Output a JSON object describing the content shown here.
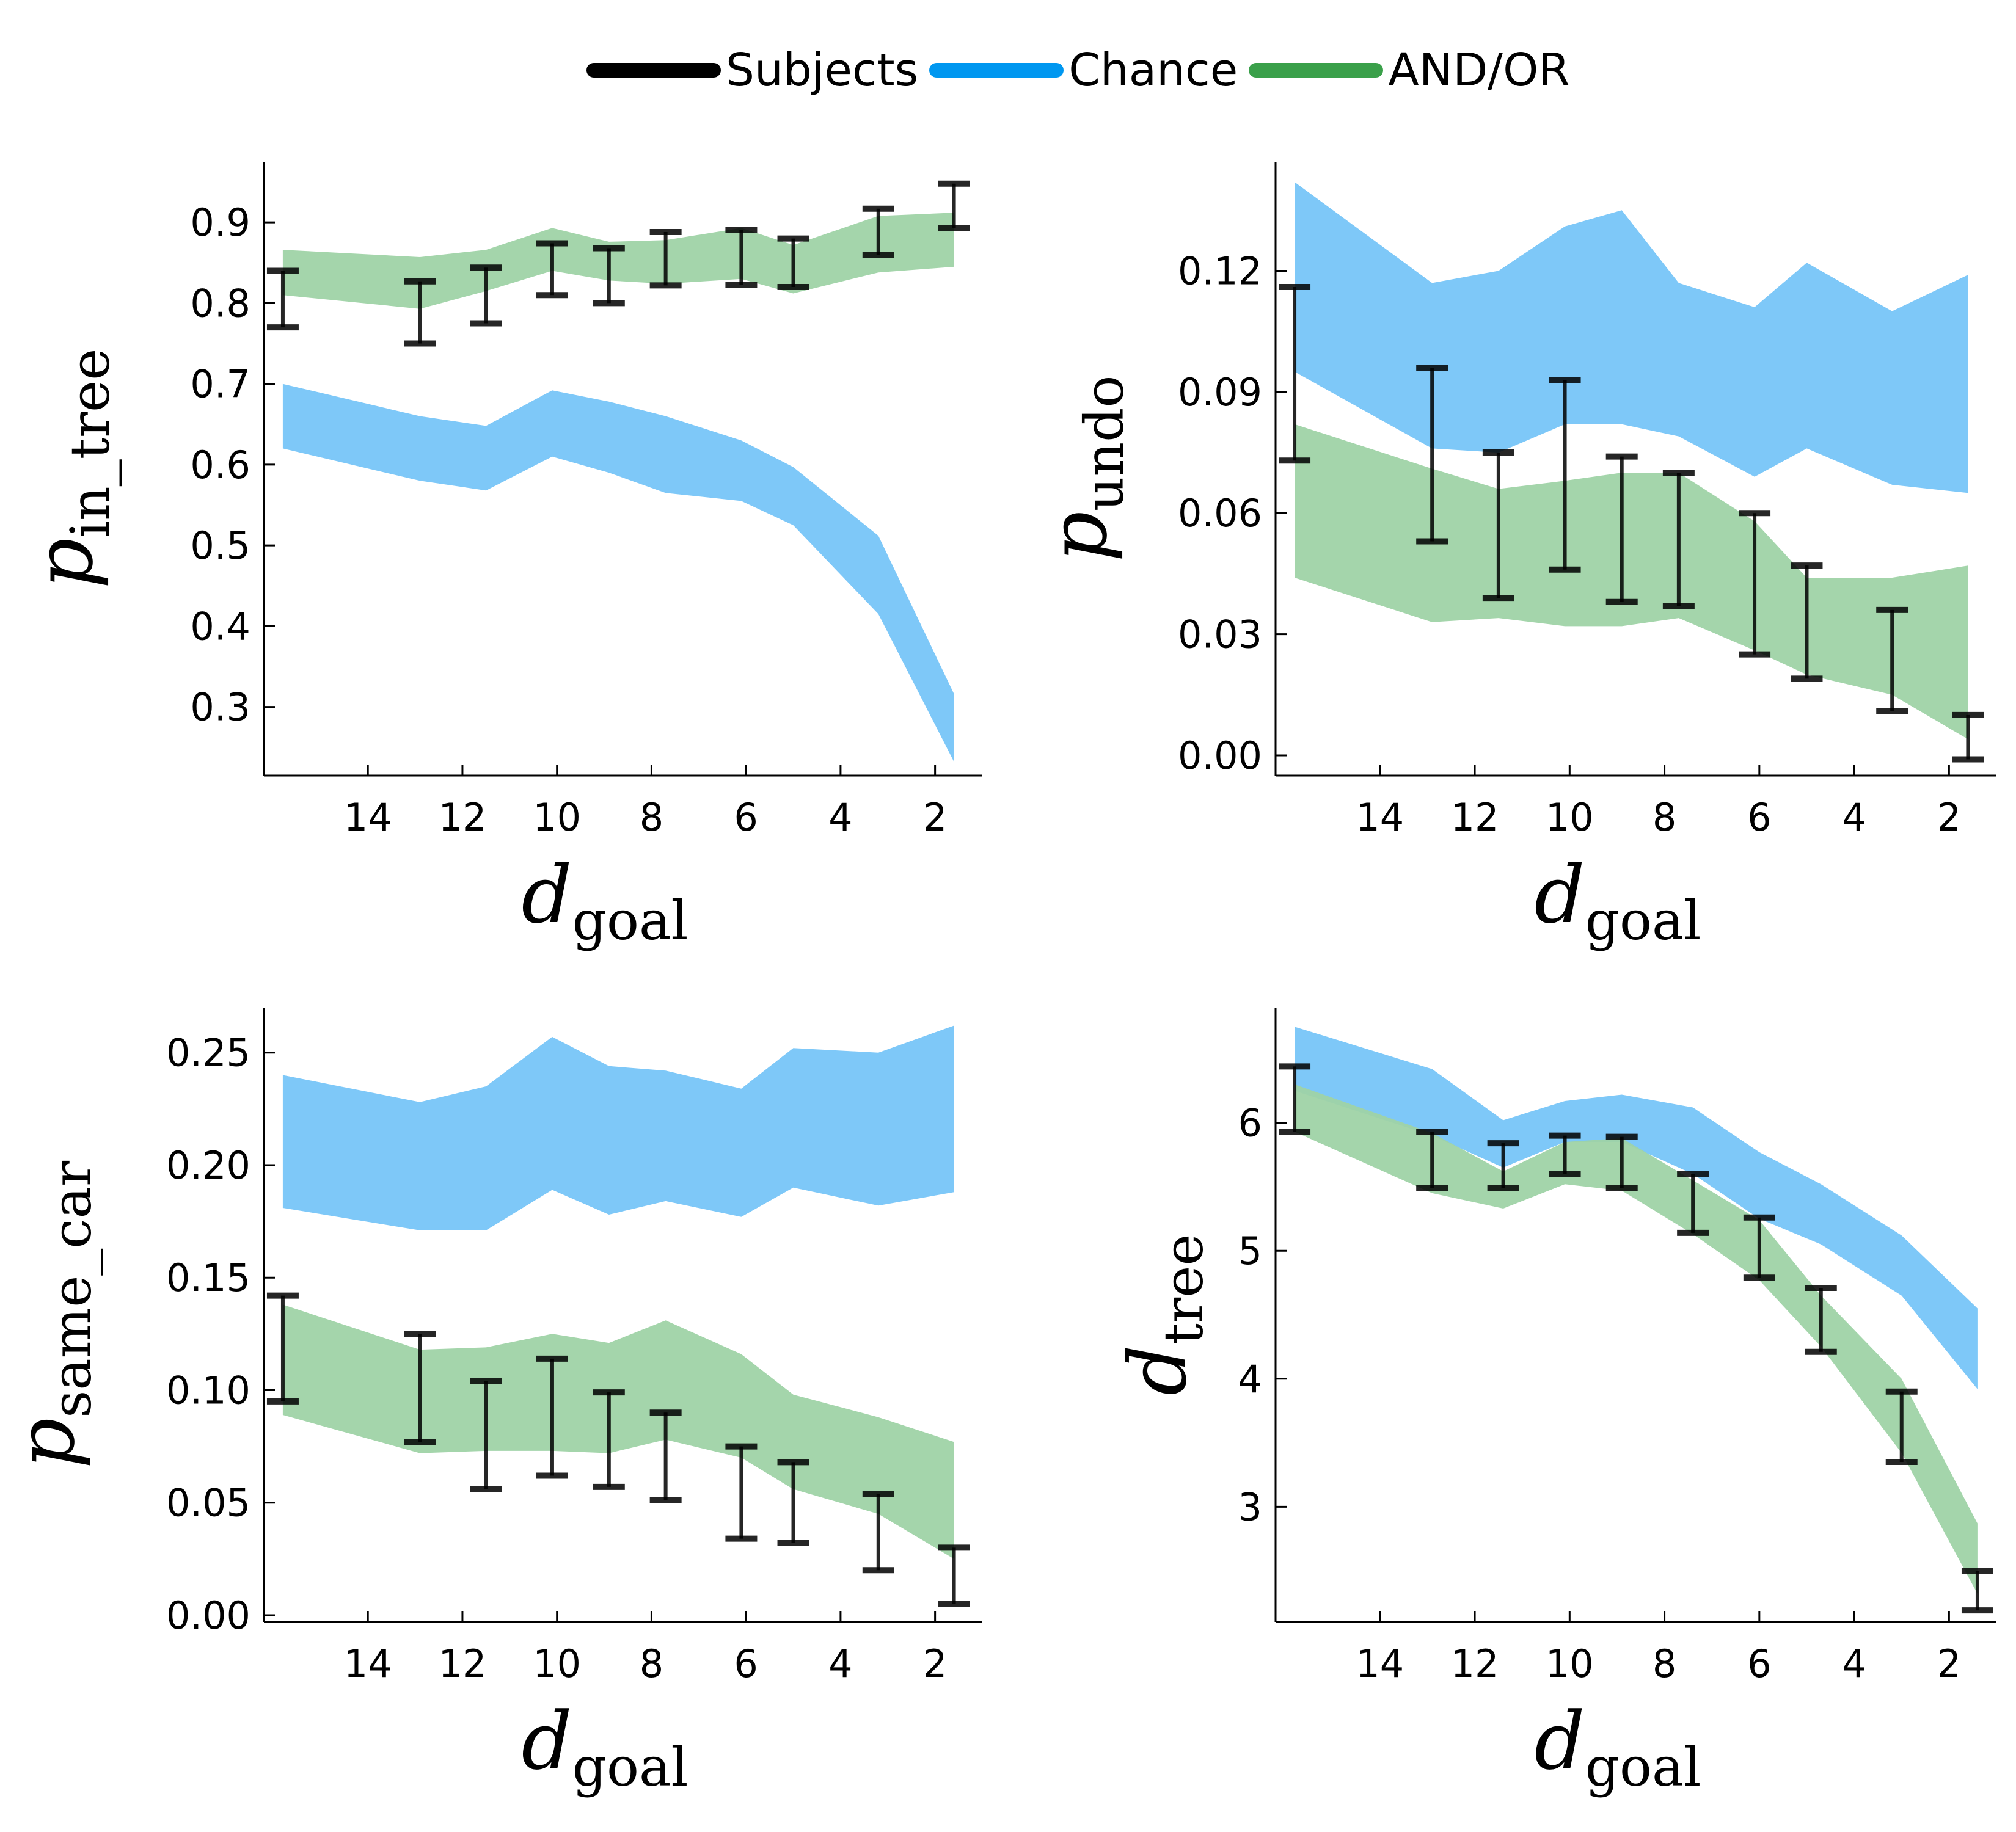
{
  "legend": [
    {
      "label": "Subjects",
      "color": "#000000"
    },
    {
      "label": "Chance",
      "color": "#0097f0"
    },
    {
      "label": "AND/OR",
      "color": "#3aa04a"
    }
  ],
  "colors": {
    "subjects": "#000000",
    "chance_band": "#7ec8f8",
    "andor_band": "#9fd3a6",
    "errorbar": "#000000"
  },
  "chart_data": [
    {
      "type": "line",
      "ylabel_main": "p",
      "ylabel_sub": "in_tree",
      "xlabel_main": "d",
      "xlabel_sub": "goal",
      "xlim": [
        16.2,
        1.0
      ],
      "ylim": [
        0.215,
        0.975
      ],
      "xticks": [
        14,
        12,
        10,
        8,
        6,
        4,
        2
      ],
      "yticks": [
        {
          "v": 0.3,
          "label": "0.3"
        },
        {
          "v": 0.4,
          "label": "0.4"
        },
        {
          "v": 0.5,
          "label": "0.5"
        },
        {
          "v": 0.6,
          "label": "0.6"
        },
        {
          "v": 0.7,
          "label": "0.7"
        },
        {
          "v": 0.8,
          "label": "0.8"
        },
        {
          "v": 0.9,
          "label": "0.9"
        }
      ],
      "series": [
        {
          "name": "Chance",
          "kind": "band",
          "x": [
            15.8,
            12.9,
            11.5,
            10.1,
            8.9,
            7.7,
            6.1,
            5.0,
            3.2,
            1.6
          ],
          "lower": [
            0.62,
            0.58,
            0.568,
            0.61,
            0.59,
            0.565,
            0.555,
            0.525,
            0.415,
            0.232
          ],
          "upper": [
            0.7,
            0.66,
            0.648,
            0.692,
            0.678,
            0.66,
            0.63,
            0.597,
            0.512,
            0.316
          ]
        },
        {
          "name": "AND/OR",
          "kind": "band",
          "x": [
            15.8,
            12.9,
            11.5,
            10.1,
            8.9,
            7.7,
            6.1,
            5.0,
            3.2,
            1.6
          ],
          "lower": [
            0.81,
            0.793,
            0.815,
            0.84,
            0.828,
            0.824,
            0.83,
            0.812,
            0.838,
            0.845
          ],
          "upper": [
            0.866,
            0.857,
            0.866,
            0.893,
            0.876,
            0.878,
            0.893,
            0.872,
            0.908,
            0.912
          ]
        },
        {
          "name": "Subjects",
          "kind": "errorbar",
          "x": [
            15.8,
            12.9,
            11.5,
            10.1,
            8.9,
            7.7,
            6.1,
            5.0,
            3.2,
            1.6
          ],
          "lower": [
            0.77,
            0.75,
            0.775,
            0.81,
            0.8,
            0.822,
            0.823,
            0.82,
            0.86,
            0.893
          ],
          "upper": [
            0.84,
            0.827,
            0.844,
            0.874,
            0.868,
            0.888,
            0.891,
            0.88,
            0.917,
            0.948
          ]
        }
      ]
    },
    {
      "type": "line",
      "ylabel_main": "p",
      "ylabel_sub": "undo",
      "xlabel_main": "d",
      "xlabel_sub": "goal",
      "xlim": [
        16.2,
        1.0
      ],
      "ylim": [
        -0.005,
        0.147
      ],
      "xticks": [
        14,
        12,
        10,
        8,
        6,
        4,
        2
      ],
      "yticks": [
        {
          "v": 0.0,
          "label": "0.00"
        },
        {
          "v": 0.03,
          "label": "0.03"
        },
        {
          "v": 0.06,
          "label": "0.06"
        },
        {
          "v": 0.09,
          "label": "0.09"
        },
        {
          "v": 0.12,
          "label": "0.12"
        }
      ],
      "series": [
        {
          "name": "Chance",
          "kind": "band",
          "x": [
            15.8,
            12.9,
            11.5,
            10.1,
            8.9,
            7.7,
            6.1,
            5.0,
            3.2,
            1.6
          ],
          "lower": [
            0.095,
            0.076,
            0.075,
            0.082,
            0.082,
            0.079,
            0.069,
            0.076,
            0.067,
            0.065
          ],
          "upper": [
            0.142,
            0.117,
            0.12,
            0.131,
            0.135,
            0.117,
            0.111,
            0.122,
            0.11,
            0.119
          ]
        },
        {
          "name": "AND/OR",
          "kind": "band",
          "x": [
            15.8,
            12.9,
            11.5,
            10.1,
            8.9,
            7.7,
            6.1,
            5.0,
            3.2,
            1.6
          ],
          "lower": [
            0.044,
            0.033,
            0.034,
            0.032,
            0.032,
            0.034,
            0.026,
            0.02,
            0.015,
            0.004
          ],
          "upper": [
            0.082,
            0.071,
            0.066,
            0.068,
            0.07,
            0.07,
            0.058,
            0.044,
            0.044,
            0.047
          ]
        },
        {
          "name": "Subjects",
          "kind": "errorbar",
          "x": [
            15.8,
            12.9,
            11.5,
            10.1,
            8.9,
            7.7,
            6.1,
            5.0,
            3.2,
            1.6
          ],
          "lower": [
            0.073,
            0.053,
            0.039,
            0.046,
            0.038,
            0.037,
            0.025,
            0.019,
            0.011,
            -0.001
          ],
          "upper": [
            0.116,
            0.096,
            0.075,
            0.093,
            0.074,
            0.07,
            0.06,
            0.047,
            0.036,
            0.01
          ]
        }
      ]
    },
    {
      "type": "line",
      "ylabel_main": "p",
      "ylabel_sub": "same_car",
      "xlabel_main": "d",
      "xlabel_sub": "goal",
      "xlim": [
        16.2,
        1.0
      ],
      "ylim": [
        -0.003,
        0.27
      ],
      "xticks": [
        14,
        12,
        10,
        8,
        6,
        4,
        2
      ],
      "yticks": [
        {
          "v": 0.0,
          "label": "0.00"
        },
        {
          "v": 0.05,
          "label": "0.05"
        },
        {
          "v": 0.1,
          "label": "0.10"
        },
        {
          "v": 0.15,
          "label": "0.15"
        },
        {
          "v": 0.2,
          "label": "0.20"
        },
        {
          "v": 0.25,
          "label": "0.25"
        }
      ],
      "series": [
        {
          "name": "Chance",
          "kind": "band",
          "x": [
            15.8,
            12.9,
            11.5,
            10.1,
            8.9,
            7.7,
            6.1,
            5.0,
            3.2,
            1.6
          ],
          "lower": [
            0.181,
            0.171,
            0.171,
            0.189,
            0.178,
            0.184,
            0.177,
            0.19,
            0.182,
            0.188
          ],
          "upper": [
            0.24,
            0.228,
            0.235,
            0.257,
            0.244,
            0.242,
            0.234,
            0.252,
            0.25,
            0.262
          ]
        },
        {
          "name": "AND/OR",
          "kind": "band",
          "x": [
            15.8,
            12.9,
            11.5,
            10.1,
            8.9,
            7.7,
            6.1,
            5.0,
            3.2,
            1.6
          ],
          "lower": [
            0.089,
            0.072,
            0.073,
            0.073,
            0.072,
            0.078,
            0.07,
            0.056,
            0.045,
            0.025
          ],
          "upper": [
            0.138,
            0.118,
            0.119,
            0.125,
            0.121,
            0.131,
            0.116,
            0.098,
            0.088,
            0.077
          ]
        },
        {
          "name": "Subjects",
          "kind": "errorbar",
          "x": [
            15.8,
            12.9,
            11.5,
            10.1,
            8.9,
            7.7,
            6.1,
            5.0,
            3.2,
            1.6
          ],
          "lower": [
            0.095,
            0.077,
            0.056,
            0.062,
            0.057,
            0.051,
            0.034,
            0.032,
            0.02,
            0.005
          ],
          "upper": [
            0.142,
            0.125,
            0.104,
            0.114,
            0.099,
            0.09,
            0.075,
            0.068,
            0.054,
            0.03
          ]
        }
      ]
    },
    {
      "type": "line",
      "ylabel_main": "d",
      "ylabel_sub": "tree",
      "xlabel_main": "d",
      "xlabel_sub": "goal",
      "xlim": [
        16.2,
        1.0
      ],
      "ylim": [
        2.1,
        6.9
      ],
      "xticks": [
        14,
        12,
        10,
        8,
        6,
        4,
        2
      ],
      "yticks": [
        {
          "v": 3,
          "label": "3"
        },
        {
          "v": 4,
          "label": "4"
        },
        {
          "v": 5,
          "label": "5"
        },
        {
          "v": 6,
          "label": "6"
        }
      ],
      "series": [
        {
          "name": "Chance",
          "kind": "band",
          "x": [
            15.8,
            12.9,
            11.4,
            10.1,
            8.9,
            7.4,
            6.0,
            4.7,
            3.0,
            1.4
          ],
          "lower": [
            6.25,
            5.9,
            5.65,
            5.85,
            5.85,
            5.6,
            5.25,
            5.05,
            4.65,
            3.92
          ],
          "upper": [
            6.75,
            6.42,
            6.02,
            6.17,
            6.22,
            6.12,
            5.77,
            5.52,
            5.12,
            4.55
          ]
        },
        {
          "name": "AND/OR",
          "kind": "band",
          "x": [
            15.8,
            12.9,
            11.4,
            10.1,
            8.9,
            7.4,
            6.0,
            4.7,
            3.0,
            1.4
          ],
          "lower": [
            5.93,
            5.45,
            5.33,
            5.52,
            5.47,
            5.13,
            4.77,
            4.25,
            3.42,
            2.32
          ],
          "upper": [
            6.3,
            5.92,
            5.62,
            5.85,
            5.88,
            5.55,
            5.24,
            4.65,
            4.0,
            2.87
          ]
        },
        {
          "name": "Subjects",
          "kind": "errorbar",
          "x": [
            15.8,
            12.9,
            11.4,
            10.1,
            8.9,
            7.4,
            6.0,
            4.7,
            3.0,
            1.4
          ],
          "lower": [
            5.93,
            5.49,
            5.49,
            5.6,
            5.49,
            5.14,
            4.79,
            4.21,
            3.35,
            2.19
          ],
          "upper": [
            6.44,
            5.93,
            5.84,
            5.9,
            5.89,
            5.6,
            5.26,
            4.71,
            3.9,
            2.5
          ]
        }
      ]
    }
  ]
}
